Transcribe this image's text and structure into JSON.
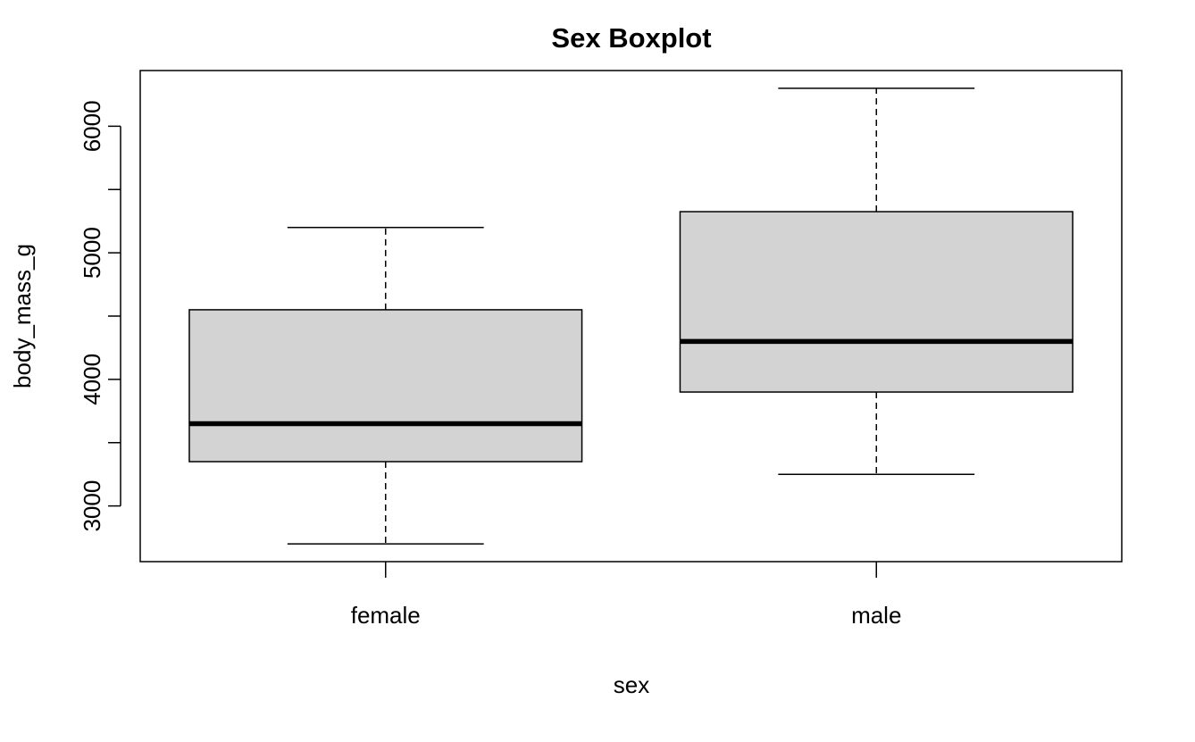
{
  "chart_data": {
    "type": "boxplot",
    "title": "Sex Boxplot",
    "xlabel": "sex",
    "ylabel": "body_mass_g",
    "categories": [
      "female",
      "male"
    ],
    "boxes": [
      {
        "category": "female",
        "whisker_low": 2700,
        "q1": 3350,
        "median": 3650,
        "q3": 4550,
        "whisker_high": 5200
      },
      {
        "category": "male",
        "whisker_low": 3250,
        "q1": 3900,
        "median": 4300,
        "q3": 5325,
        "whisker_high": 6300
      }
    ],
    "yticks": [
      3000,
      3500,
      4000,
      4500,
      5000,
      5500,
      6000
    ],
    "ytick_labels": [
      "3000",
      "4000",
      "5000",
      "6000"
    ],
    "ylim": [
      2560,
      6440
    ],
    "grid": false,
    "colors": {
      "box_fill": "#d3d3d3",
      "stroke": "#000000",
      "background": "#ffffff"
    }
  }
}
